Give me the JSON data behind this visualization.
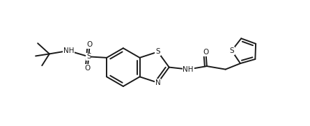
{
  "bg_color": "#ffffff",
  "line_color": "#1a1a1a",
  "line_width": 1.4,
  "font_size": 7.5,
  "fig_width": 4.45,
  "fig_height": 1.81,
  "dpi": 100,
  "xlim": [
    0,
    14.5
  ],
  "ylim": [
    0,
    5.9
  ]
}
